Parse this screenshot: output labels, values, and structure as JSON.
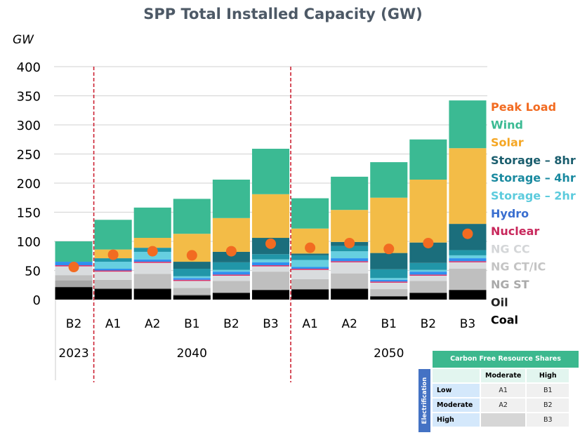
{
  "chart_data": {
    "type": "bar",
    "stacked": true,
    "title": "SPP Total Installed Capacity (GW)",
    "ylabel": "GW",
    "xlabel": "",
    "ylim": [
      0,
      400
    ],
    "yticks": [
      0,
      50,
      100,
      150,
      200,
      250,
      300,
      350,
      400
    ],
    "grid": true,
    "legend_position": "right",
    "groups": [
      {
        "label": "2023",
        "categories": [
          "B2"
        ]
      },
      {
        "label": "2040",
        "categories": [
          "A1",
          "A2",
          "B1",
          "B2",
          "B3"
        ]
      },
      {
        "label": "2050",
        "categories": [
          "A1",
          "A2",
          "B1",
          "B2",
          "B3"
        ]
      }
    ],
    "categories": [
      "2023 B2",
      "2040 A1",
      "2040 A2",
      "2040 B1",
      "2040 B2",
      "2040 B3",
      "2050 A1",
      "2050 A2",
      "2050 B1",
      "2050 B2",
      "2050 B3"
    ],
    "category_labels": [
      "B2",
      "A1",
      "A2",
      "B1",
      "B2",
      "B3",
      "A1",
      "A2",
      "B1",
      "B2",
      "B3"
    ],
    "series": [
      {
        "name": "Coal",
        "color": "#000000",
        "values": [
          21,
          18,
          18,
          7,
          11,
          16,
          17,
          18,
          5,
          11,
          16
        ]
      },
      {
        "name": "Oil",
        "color": "#3a3a3a",
        "values": [
          1,
          1,
          1,
          1,
          1,
          1,
          1,
          1,
          1,
          1,
          1
        ]
      },
      {
        "name": "NG ST",
        "color": "#a6a6a6",
        "values": [
          11,
          0,
          0,
          0,
          0,
          0,
          0,
          0,
          0,
          0,
          0
        ]
      },
      {
        "name": "NG CT/IC",
        "color": "#bfbfbf",
        "values": [
          9,
          15,
          25,
          12,
          20,
          31,
          17,
          26,
          12,
          20,
          36
        ]
      },
      {
        "name": "NG CC",
        "color": "#d9dcde",
        "values": [
          15,
          14,
          19,
          12,
          9,
          9,
          16,
          19,
          11,
          9,
          11
        ]
      },
      {
        "name": "Nuclear",
        "color": "#d6336c",
        "values": [
          2,
          2,
          2,
          2,
          2,
          2,
          2,
          2,
          2,
          2,
          2
        ]
      },
      {
        "name": "Hydro",
        "color": "#2e8fef",
        "values": [
          6,
          3,
          4,
          3,
          5,
          5,
          3,
          5,
          3,
          5,
          5
        ]
      },
      {
        "name": "Storage – 2hr",
        "color": "#66cfe0",
        "values": [
          0,
          12,
          13,
          3,
          3,
          5,
          12,
          12,
          3,
          3,
          5
        ]
      },
      {
        "name": "Storage – 4hr",
        "color": "#2196a8",
        "values": [
          0,
          6,
          7,
          13,
          13,
          9,
          8,
          9,
          15,
          12,
          9
        ]
      },
      {
        "name": "Storage – 8hr",
        "color": "#1b6e7c",
        "values": [
          0,
          0,
          0,
          12,
          18,
          28,
          3,
          7,
          28,
          35,
          45
        ]
      },
      {
        "name": "Solar",
        "color": "#f3bc47",
        "values": [
          0,
          15,
          17,
          48,
          58,
          75,
          43,
          55,
          95,
          108,
          130
        ]
      },
      {
        "name": "Wind",
        "color": "#3bba93",
        "values": [
          35,
          51,
          52,
          60,
          66,
          78,
          52,
          57,
          61,
          69,
          82
        ]
      }
    ],
    "peak_load": {
      "name": "Peak Load",
      "color": "#f26b21",
      "values": [
        56,
        77,
        83,
        76,
        83,
        96,
        89,
        97,
        87,
        97,
        113
      ]
    },
    "legend": [
      {
        "label": "Peak Load",
        "color": "#f26b21"
      },
      {
        "label": "Wind",
        "color": "#3bba93"
      },
      {
        "label": "Solar",
        "color": "#f5a623"
      },
      {
        "label": "Storage – 8hr",
        "color": "#1b5e6e"
      },
      {
        "label": "Storage – 4hr",
        "color": "#1a8aa0"
      },
      {
        "label": "Storage – 2hr",
        "color": "#5ccbdd"
      },
      {
        "label": "Hydro",
        "color": "#3a6fd0"
      },
      {
        "label": "Nuclear",
        "color": "#c8285c"
      },
      {
        "label": "NG CC",
        "color": "#d4d6d8"
      },
      {
        "label": "NG CT/IC",
        "color": "#c4c4c4"
      },
      {
        "label": "NG ST",
        "color": "#a9a9a9"
      },
      {
        "label": "Oil",
        "color": "#222222"
      },
      {
        "label": "Coal",
        "color": "#000000"
      }
    ]
  },
  "scenario_key": {
    "title": "Carbon Free Resource Shares",
    "side_label": "Electrification",
    "columns": [
      "Moderate",
      "High"
    ],
    "rows": [
      {
        "label": "Low",
        "cells": [
          "A1",
          "B1"
        ]
      },
      {
        "label": "Moderate",
        "cells": [
          "A2",
          "B2"
        ]
      },
      {
        "label": "High",
        "cells": [
          "",
          "B3"
        ]
      }
    ]
  }
}
